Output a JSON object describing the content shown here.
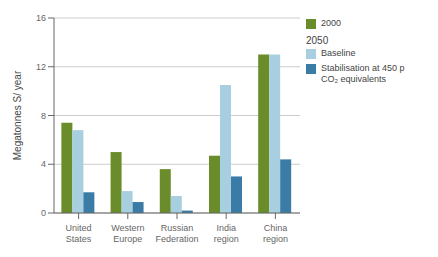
{
  "chart_data": {
    "type": "bar",
    "categories": [
      "United\nStates",
      "Western\nEurope",
      "Russian\nFederation",
      "India\nregion",
      "China\nregion"
    ],
    "series": [
      {
        "name": "2000",
        "color": "#6b8c2a",
        "values": [
          7.4,
          5.0,
          3.6,
          4.7,
          13.0
        ]
      },
      {
        "name": "Baseline",
        "color": "#a8cfe0",
        "values": [
          6.8,
          1.8,
          1.4,
          10.5,
          13.0
        ]
      },
      {
        "name": "Stabilisation at 450 p\nCO₂ equivalents",
        "color": "#3a7ca5",
        "values": [
          1.7,
          0.9,
          0.2,
          3.0,
          4.4
        ]
      }
    ],
    "ylabel": "Megatonnes S/ year",
    "ylim": [
      0,
      16
    ],
    "yticks": [
      0,
      4,
      8,
      12,
      16
    ],
    "grid": true,
    "legend": "right",
    "annotations": [
      "2050"
    ]
  }
}
